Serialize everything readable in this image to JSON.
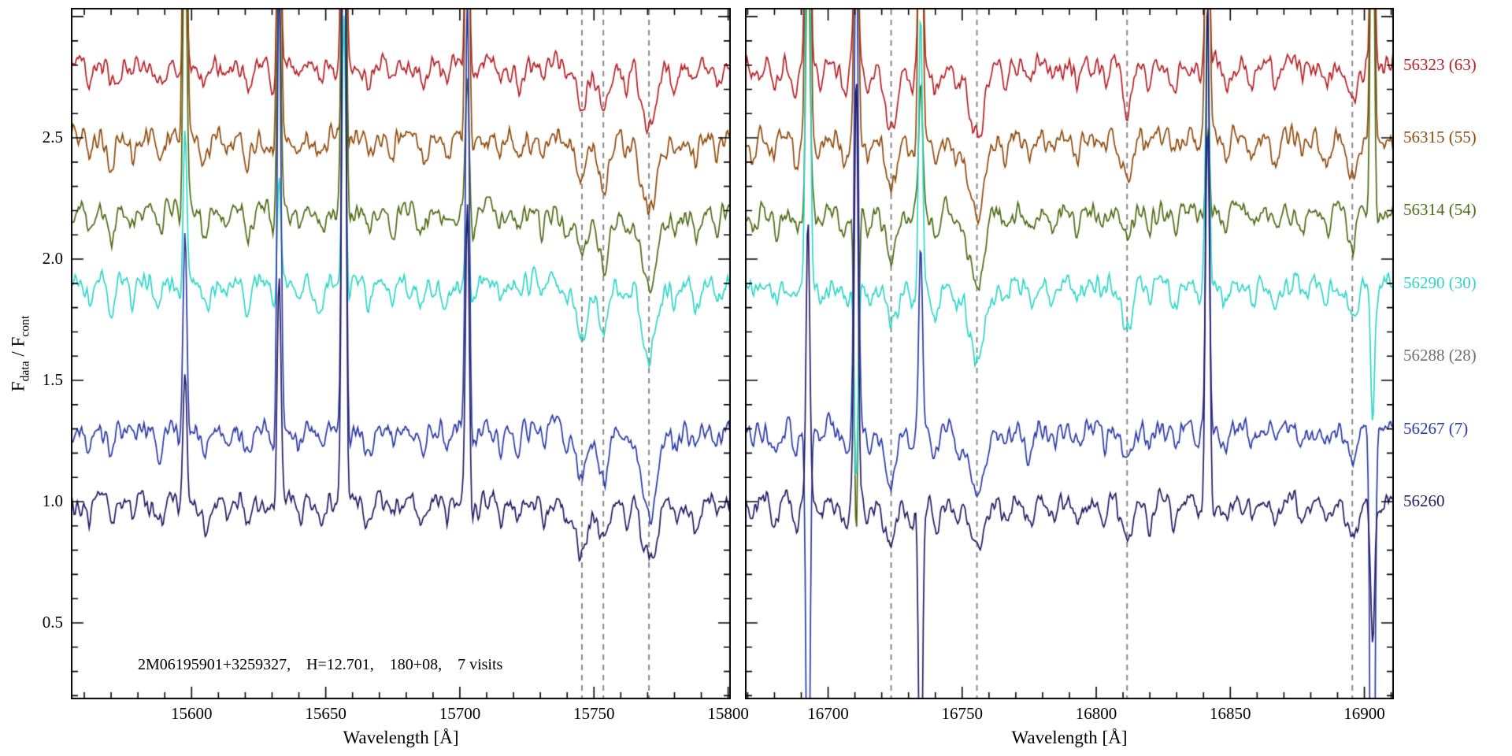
{
  "figure": {
    "background": "#ffffff",
    "axis_color": "#000000",
    "dashed_line_color": "#8a8a8a"
  },
  "chart_data": {
    "type": "line",
    "title": "",
    "xlabel": "Wavelength [Å]",
    "ylabel_parts": {
      "base1": "F",
      "sub1": "data",
      "mid": " / ",
      "base2": "F",
      "sub2": "cont"
    },
    "annotation": "2M06195901+3259327,    H=12.701,    180+08,    7 visits",
    "ylim": [
      0.185,
      3.036
    ],
    "yticks": [
      0.5,
      1.0,
      1.5,
      2.0,
      2.5
    ],
    "legend_position": "right-margin",
    "grid": false,
    "panels": [
      {
        "xlim": [
          15555,
          15801
        ],
        "xticks": [
          15600,
          15650,
          15700,
          15750,
          15800
        ],
        "minor_tick_step": 10,
        "dashed_lines": [
          15745.5,
          15753.5,
          15770.5
        ],
        "sky_emission_lines": [
          {
            "w": 15597.5,
            "s": 1.6
          },
          {
            "w": 15632.6,
            "s": 1.3
          },
          {
            "w": 15656.8,
            "s": 2.6
          },
          {
            "w": 15702.8,
            "s": 1.1
          }
        ],
        "absorption_lines": [
          {
            "c": 15562,
            "d": 0.07,
            "w": 1.0
          },
          {
            "c": 15570,
            "d": 0.12,
            "w": 1.1
          },
          {
            "c": 15578,
            "d": 0.06,
            "w": 0.9
          },
          {
            "c": 15588,
            "d": 0.09,
            "w": 1.2
          },
          {
            "c": 15596,
            "d": 0.07,
            "w": 1.0
          },
          {
            "c": 15605,
            "d": 0.1,
            "w": 1.4
          },
          {
            "c": 15613,
            "d": 0.06,
            "w": 1.0
          },
          {
            "c": 15621,
            "d": 0.08,
            "w": 1.1
          },
          {
            "c": 15631,
            "d": 0.1,
            "w": 1.2
          },
          {
            "c": 15640,
            "d": 0.06,
            "w": 1.0
          },
          {
            "c": 15648,
            "d": 0.08,
            "w": 1.3
          },
          {
            "c": 15658,
            "d": 0.07,
            "w": 1.0
          },
          {
            "c": 15666,
            "d": 0.1,
            "w": 1.2
          },
          {
            "c": 15675,
            "d": 0.06,
            "w": 1.0
          },
          {
            "c": 15686,
            "d": 0.09,
            "w": 1.3
          },
          {
            "c": 15695,
            "d": 0.07,
            "w": 1.1
          },
          {
            "c": 15705,
            "d": 0.08,
            "w": 1.2
          },
          {
            "c": 15715,
            "d": 0.06,
            "w": 1.0
          },
          {
            "c": 15722,
            "d": 0.08,
            "w": 1.2
          },
          {
            "c": 15731,
            "d": 0.06,
            "w": 1.0
          },
          {
            "c": 15740,
            "d": 0.07,
            "w": 1.1
          },
          {
            "c": 15745.5,
            "d": 0.2,
            "w": 2.0
          },
          {
            "c": 15753.5,
            "d": 0.19,
            "w": 2.1
          },
          {
            "c": 15762,
            "d": 0.08,
            "w": 1.2
          },
          {
            "c": 15770.5,
            "d": 0.28,
            "w": 2.8
          },
          {
            "c": 15780,
            "d": 0.08,
            "w": 1.2
          },
          {
            "c": 15788,
            "d": 0.1,
            "w": 1.4
          },
          {
            "c": 15796,
            "d": 0.07,
            "w": 1.1
          }
        ]
      },
      {
        "xlim": [
          16669,
          16911
        ],
        "xticks": [
          16700,
          16750,
          16800,
          16850,
          16900
        ],
        "minor_tick_step": 10,
        "dashed_lines": [
          16723.5,
          16755.5,
          16811.5,
          16895.5
        ],
        "sky_emission_lines": [
          {
            "w": 16692.5,
            "s": 2.8
          },
          {
            "w": 16710.5,
            "s": 2.0
          },
          {
            "w": 16734.5,
            "s": 1.1
          },
          {
            "w": 16841.5,
            "s": 1.4
          },
          {
            "w": 16903.0,
            "s": 2.2
          }
        ],
        "absorption_lines": [
          {
            "c": 16672,
            "d": 0.07,
            "w": 1.1
          },
          {
            "c": 16680,
            "d": 0.08,
            "w": 1.2
          },
          {
            "c": 16688,
            "d": 0.09,
            "w": 1.2
          },
          {
            "c": 16697,
            "d": 0.07,
            "w": 1.0
          },
          {
            "c": 16706,
            "d": 0.09,
            "w": 1.3
          },
          {
            "c": 16715,
            "d": 0.07,
            "w": 1.1
          },
          {
            "c": 16723.5,
            "d": 0.2,
            "w": 2.2
          },
          {
            "c": 16731,
            "d": 0.08,
            "w": 1.1
          },
          {
            "c": 16740,
            "d": 0.09,
            "w": 1.3
          },
          {
            "c": 16748,
            "d": 0.07,
            "w": 1.1
          },
          {
            "c": 16755.5,
            "d": 0.26,
            "w": 3.0
          },
          {
            "c": 16766,
            "d": 0.07,
            "w": 1.1
          },
          {
            "c": 16775,
            "d": 0.09,
            "w": 1.2
          },
          {
            "c": 16784,
            "d": 0.07,
            "w": 1.1
          },
          {
            "c": 16793,
            "d": 0.08,
            "w": 1.2
          },
          {
            "c": 16803,
            "d": 0.06,
            "w": 1.0
          },
          {
            "c": 16811.5,
            "d": 0.15,
            "w": 1.9
          },
          {
            "c": 16820,
            "d": 0.07,
            "w": 1.1
          },
          {
            "c": 16829,
            "d": 0.08,
            "w": 1.2
          },
          {
            "c": 16838,
            "d": 0.06,
            "w": 1.0
          },
          {
            "c": 16848,
            "d": 0.08,
            "w": 1.2
          },
          {
            "c": 16858,
            "d": 0.07,
            "w": 1.1
          },
          {
            "c": 16867,
            "d": 0.08,
            "w": 1.2
          },
          {
            "c": 16877,
            "d": 0.06,
            "w": 1.0
          },
          {
            "c": 16886,
            "d": 0.08,
            "w": 1.2
          },
          {
            "c": 16895.5,
            "d": 0.13,
            "w": 1.9
          },
          {
            "c": 16904,
            "d": 0.07,
            "w": 1.1
          }
        ]
      }
    ],
    "series": [
      {
        "label": "56323 (63)",
        "color": "#b42025",
        "offset": 2.8,
        "plotted": true
      },
      {
        "label": "56315 (55)",
        "color": "#8f4a0c",
        "offset": 2.5,
        "plotted": true
      },
      {
        "label": "56314 (54)",
        "color": "#4e6b14",
        "offset": 2.2,
        "plotted": true
      },
      {
        "label": "56290 (30)",
        "color": "#2fd6c8",
        "offset": 1.9,
        "plotted": true
      },
      {
        "label": "56288 (28)",
        "color": "#6f6f6f",
        "offset": 1.6,
        "plotted": false
      },
      {
        "label": "56267 (7)",
        "color": "#2a3aa6",
        "offset": 1.3,
        "plotted": true
      },
      {
        "label": "56260",
        "color": "#261a63",
        "offset": 1.0,
        "plotted": true
      }
    ]
  }
}
